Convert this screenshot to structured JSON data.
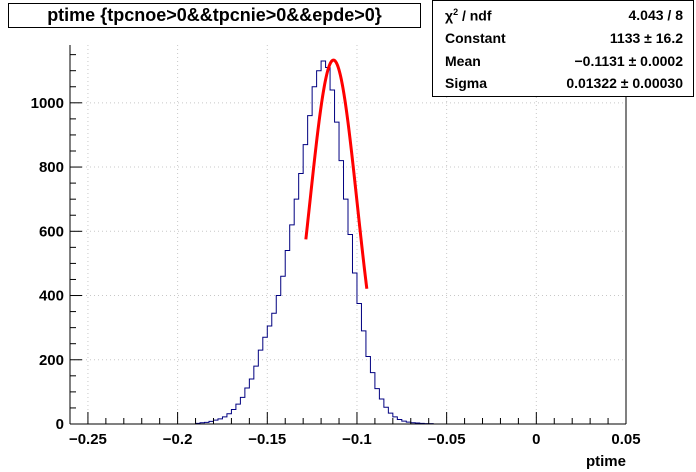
{
  "title": "ptime {tpcnoe>0&&tpcnie>0&&epde>0}",
  "stats": {
    "rows": [
      {
        "key_prefix": "χ",
        "key_sup": "2",
        "key_suffix": " / ndf",
        "value": "4.043 / 8"
      },
      {
        "key": "Constant",
        "value": "1133 ± 16.2"
      },
      {
        "key": "Mean",
        "value": "−0.1131 ± 0.0002"
      },
      {
        "key": "Sigma",
        "value": "0.01322 ± 0.00030"
      }
    ]
  },
  "colors": {
    "histogram": "#000080",
    "fit": "#ff0000",
    "grid": "#c8c8c8",
    "axis": "#000000"
  },
  "chart_data": {
    "type": "histogram",
    "title": "ptime {tpcnoe>0&&tpcnie>0&&epde>0}",
    "xlabel": "ptime",
    "ylabel": "",
    "xlim": [
      -0.26,
      0.05
    ],
    "ylim": [
      0,
      1180
    ],
    "xticks": [
      -0.25,
      -0.2,
      -0.15,
      -0.1,
      -0.05,
      0,
      0.05
    ],
    "xtick_labels": [
      "−0.25",
      "−0.2",
      "−0.15",
      "−0.1",
      "−0.05",
      "0",
      "0.05"
    ],
    "yticks": [
      0,
      200,
      400,
      600,
      800,
      1000
    ],
    "ytick_labels": [
      "0",
      "200",
      "400",
      "600",
      "800",
      "1000"
    ],
    "grid": true,
    "bin_width": 0.0025,
    "bin_edges_start": -0.19,
    "counts": [
      2,
      4,
      5,
      8,
      12,
      16,
      22,
      32,
      45,
      62,
      83,
      112,
      140,
      180,
      230,
      270,
      305,
      345,
      400,
      460,
      540,
      620,
      700,
      780,
      870,
      960,
      1050,
      1100,
      1130,
      1110,
      1040,
      940,
      820,
      700,
      590,
      470,
      375,
      290,
      210,
      160,
      110,
      78,
      52,
      34,
      22,
      14,
      9,
      6,
      4,
      3,
      2,
      1,
      1
    ],
    "fit": {
      "name": "gaus",
      "constant": 1133,
      "mean": -0.1131,
      "sigma": 0.01322,
      "range": [
        -0.1285,
        -0.0945
      ]
    }
  }
}
